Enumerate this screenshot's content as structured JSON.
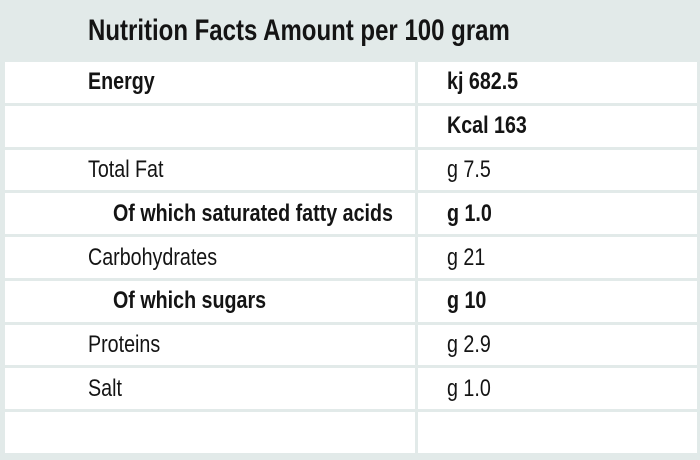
{
  "header": {
    "title": "Nutrition Facts Amount per 100 gram"
  },
  "colors": {
    "background": "#e2eae9",
    "row_bg": "#ffffff",
    "text": "#141414"
  },
  "table": {
    "columns": [
      "nutrient",
      "amount_per_100_gram"
    ],
    "rows": [
      {
        "label": "Energy",
        "value": "kj 682.5",
        "bold": true,
        "indent": false
      },
      {
        "label": "",
        "value": "Kcal 163",
        "bold": true,
        "indent": false
      },
      {
        "label": "Total Fat",
        "value": "g 7.5",
        "bold": false,
        "indent": false
      },
      {
        "label": "Of which saturated fatty acids",
        "value": "g 1.0",
        "bold": true,
        "indent": true
      },
      {
        "label": "Carbohydrates",
        "value": "g 21",
        "bold": false,
        "indent": false
      },
      {
        "label": "Of which sugars",
        "value": "g 10",
        "bold": true,
        "indent": true
      },
      {
        "label": "Proteins",
        "value": "g 2.9",
        "bold": false,
        "indent": false
      },
      {
        "label": "Salt",
        "value": "g 1.0",
        "bold": false,
        "indent": false
      },
      {
        "label": "",
        "value": "",
        "bold": false,
        "indent": false
      }
    ]
  }
}
